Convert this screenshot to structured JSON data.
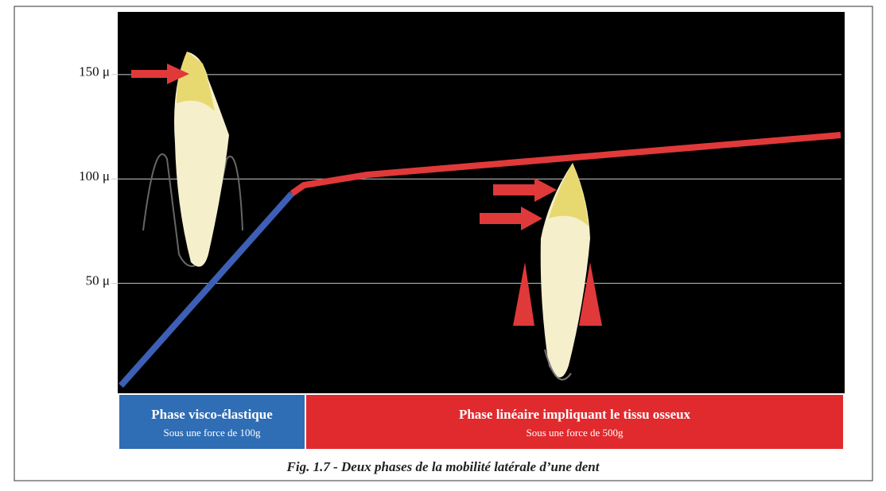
{
  "chart_data": {
    "type": "line",
    "x": [
      0,
      215,
      230,
      310,
      905
    ],
    "xlim": [
      0,
      910
    ],
    "ylim": [
      0,
      180
    ],
    "yticks": [
      {
        "value": 50,
        "label": "50 μ"
      },
      {
        "value": 100,
        "label": "100 μ"
      },
      {
        "value": 150,
        "label": "150 μ"
      }
    ],
    "grid": true,
    "series": [
      {
        "color": "#3d5fb5",
        "values": [
          1,
          93,
          null,
          null,
          null
        ]
      },
      {
        "color": "#e0393a",
        "values": [
          null,
          93,
          97,
          102,
          121
        ]
      }
    ],
    "phases": [
      {
        "title": "Phase visco-élastique",
        "subtitle": "Sous une force de 100g",
        "color": "#2f6db5"
      },
      {
        "title": "Phase linéaire impliquant le tissu osseux",
        "subtitle": "Sous une force de 500g",
        "color": "#e02a2e"
      }
    ],
    "caption": "Fig. 1.7 - Deux phases de la mobilité latérale d’une dent"
  }
}
